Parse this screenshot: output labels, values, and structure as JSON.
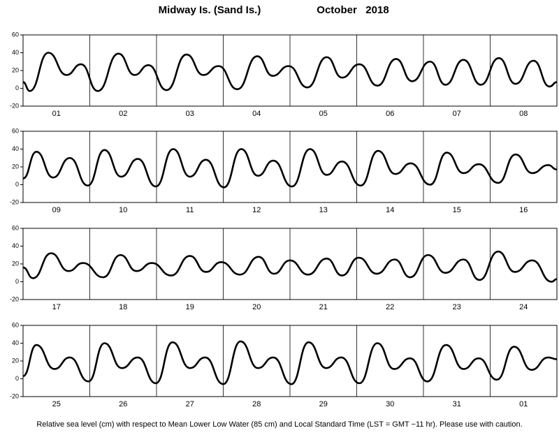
{
  "header": {
    "title": "Midway Is. (Sand Is.)",
    "subtitle": "October   2018"
  },
  "footer": "Relative sea level (cm) with respect to Mean Lower Low Water (85 cm) and Local Standard Time (LST = GMT −11 hr). Please use with caution.",
  "chart_data": [
    {
      "type": "line",
      "categories": [
        "01",
        "02",
        "03",
        "04",
        "05",
        "06",
        "07",
        "08"
      ],
      "xlim": [
        0,
        8
      ],
      "ylim": [
        -20,
        60
      ],
      "yticks": [
        -20,
        0,
        20,
        40,
        60
      ],
      "color": "#000000",
      "x": [
        0,
        0.1,
        0.38,
        0.65,
        0.87,
        1.12,
        1.43,
        1.67,
        1.88,
        2.15,
        2.45,
        2.7,
        2.93,
        3.21,
        3.51,
        3.74,
        3.98,
        4.26,
        4.55,
        4.78,
        5.04,
        5.31,
        5.59,
        5.83,
        6.1,
        6.33,
        6.6,
        6.86,
        7.13,
        7.38,
        7.65,
        7.89,
        8
      ],
      "values": [
        7,
        -3,
        40,
        15,
        27,
        -3,
        39,
        15,
        26,
        -2,
        38,
        15,
        25,
        -1,
        36,
        14,
        25,
        1,
        35,
        12,
        27,
        3,
        33,
        8,
        30,
        4,
        32,
        4,
        34,
        5,
        31,
        2,
        7
      ]
    },
    {
      "type": "line",
      "categories": [
        "09",
        "10",
        "11",
        "12",
        "13",
        "14",
        "15",
        "16"
      ],
      "xlim": [
        0,
        8
      ],
      "ylim": [
        -20,
        60
      ],
      "yticks": [
        -20,
        0,
        20,
        40,
        60
      ],
      "color": "#000000",
      "x": [
        0,
        0.2,
        0.45,
        0.7,
        0.97,
        1.22,
        1.47,
        1.72,
        1.99,
        2.25,
        2.5,
        2.74,
        3.01,
        3.27,
        3.52,
        3.75,
        4.03,
        4.3,
        4.55,
        4.78,
        5.06,
        5.32,
        5.58,
        5.81,
        6.1,
        6.35,
        6.6,
        6.83,
        7.12,
        7.38,
        7.63,
        7.87,
        8
      ],
      "values": [
        7,
        37,
        8,
        30,
        -1,
        39,
        9,
        29,
        -2,
        40,
        9,
        28,
        -3,
        40,
        10,
        27,
        -2,
        40,
        11,
        26,
        -1,
        38,
        12,
        24,
        0,
        36,
        13,
        23,
        2,
        34,
        13,
        22,
        17
      ]
    },
    {
      "type": "line",
      "categories": [
        "17",
        "18",
        "19",
        "20",
        "21",
        "22",
        "23",
        "24"
      ],
      "xlim": [
        0,
        8
      ],
      "ylim": [
        -20,
        60
      ],
      "yticks": [
        -20,
        0,
        20,
        40,
        60
      ],
      "color": "#000000",
      "x": [
        0,
        0.15,
        0.42,
        0.68,
        0.9,
        1.2,
        1.46,
        1.7,
        1.93,
        2.22,
        2.5,
        2.74,
        2.97,
        3.25,
        3.53,
        3.76,
        4.0,
        4.27,
        4.55,
        4.78,
        5.03,
        5.3,
        5.57,
        5.8,
        6.07,
        6.33,
        6.6,
        6.84,
        7.12,
        7.37,
        7.63,
        7.92,
        8
      ],
      "values": [
        16,
        4,
        32,
        12,
        21,
        5,
        30,
        12,
        21,
        7,
        29,
        11,
        22,
        8,
        28,
        9,
        24,
        8,
        26,
        7,
        27,
        9,
        25,
        5,
        30,
        10,
        25,
        2,
        34,
        11,
        24,
        0,
        3
      ]
    },
    {
      "type": "line",
      "categories": [
        "25",
        "26",
        "27",
        "28",
        "29",
        "30",
        "31",
        "01"
      ],
      "xlim": [
        0,
        8
      ],
      "ylim": [
        -20,
        60
      ],
      "yticks": [
        -20,
        0,
        20,
        40,
        60
      ],
      "color": "#000000",
      "x": [
        0,
        0.2,
        0.47,
        0.7,
        0.98,
        1.22,
        1.48,
        1.72,
        1.99,
        2.24,
        2.5,
        2.73,
        3.0,
        3.26,
        3.52,
        3.75,
        4.02,
        4.28,
        4.54,
        4.77,
        5.04,
        5.31,
        5.56,
        5.8,
        6.06,
        6.34,
        6.6,
        6.83,
        7.1,
        7.36,
        7.62,
        7.87,
        8
      ],
      "values": [
        3,
        38,
        11,
        24,
        -3,
        40,
        12,
        24,
        -5,
        41,
        12,
        24,
        -6,
        42,
        12,
        24,
        -6,
        41,
        12,
        24,
        -5,
        40,
        11,
        23,
        -3,
        38,
        11,
        23,
        -1,
        36,
        10,
        24,
        22
      ]
    }
  ]
}
